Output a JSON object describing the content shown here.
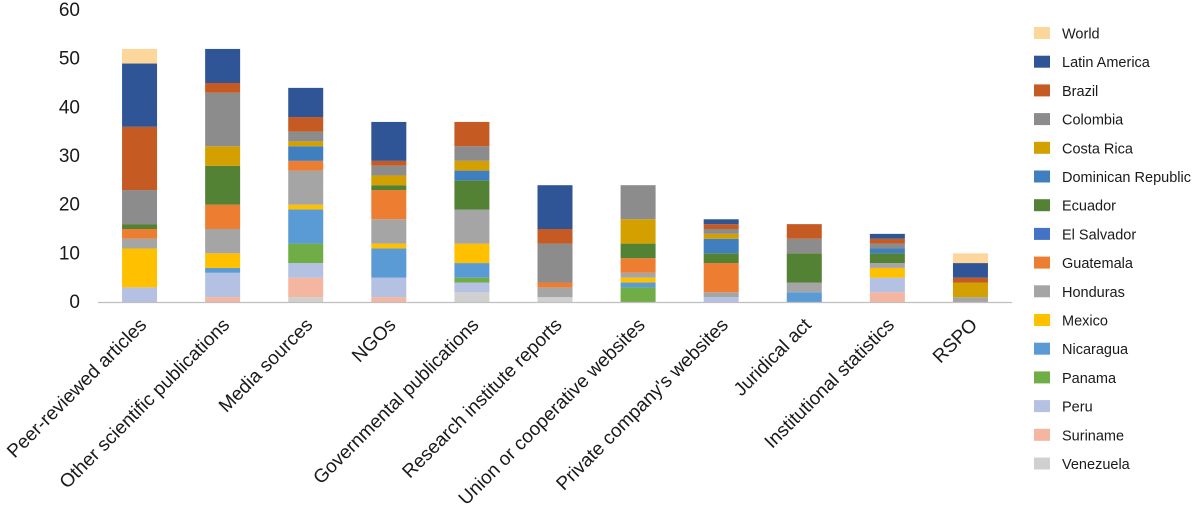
{
  "chart_data": {
    "type": "bar",
    "stacked": true,
    "ylim": [
      0,
      60
    ],
    "yticks": [
      0,
      10,
      20,
      30,
      40,
      50,
      60
    ],
    "grid": false,
    "legend_position": "right",
    "categories": [
      "Peer-reviewed articles",
      "Other scientific publications",
      "Media sources",
      "NGOs",
      "Governmental publications",
      "Research institute reports",
      "Union or cooperative websites",
      "Private company's websites",
      "Juridical act",
      "Institutional statistics",
      "RSPO"
    ],
    "series": [
      {
        "name": "Venezuela",
        "color": "#d0d0d0",
        "values": [
          0,
          0,
          1,
          0,
          2,
          1,
          0,
          0,
          0,
          0,
          0
        ]
      },
      {
        "name": "Suriname",
        "color": "#f4b6a0",
        "values": [
          0,
          1,
          4,
          1,
          0,
          0,
          0,
          0,
          0,
          2,
          0
        ]
      },
      {
        "name": "Peru",
        "color": "#b4c1e3",
        "values": [
          3,
          5,
          3,
          4,
          2,
          0,
          0,
          1,
          0,
          3,
          0
        ]
      },
      {
        "name": "Panama",
        "color": "#70ad47",
        "values": [
          0,
          0,
          4,
          0,
          1,
          0,
          3,
          0,
          0,
          0,
          0
        ]
      },
      {
        "name": "Nicaragua",
        "color": "#5b9bd5",
        "values": [
          0,
          1,
          7,
          6,
          3,
          0,
          1,
          0,
          2,
          0,
          0
        ]
      },
      {
        "name": "Mexico",
        "color": "#ffc000",
        "values": [
          8,
          3,
          1,
          1,
          4,
          0,
          1,
          0,
          0,
          2,
          0
        ]
      },
      {
        "name": "Honduras",
        "color": "#a5a5a5",
        "values": [
          2,
          5,
          7,
          5,
          7,
          2,
          1,
          1,
          2,
          1,
          1
        ]
      },
      {
        "name": "Guatemala",
        "color": "#ed7d31",
        "values": [
          2,
          5,
          2,
          6,
          0,
          1,
          3,
          6,
          0,
          0,
          0
        ]
      },
      {
        "name": "El Salvador",
        "color": "#4472c4",
        "values": [
          0,
          0,
          0,
          0,
          0,
          0,
          0,
          0,
          0,
          0,
          0
        ]
      },
      {
        "name": "Ecuador",
        "color": "#548235",
        "values": [
          1,
          8,
          0,
          1,
          6,
          0,
          3,
          2,
          6,
          2,
          0
        ]
      },
      {
        "name": "Dominican Republic",
        "color": "#3f7fbf",
        "values": [
          0,
          0,
          3,
          0,
          2,
          0,
          0,
          3,
          0,
          1,
          0
        ]
      },
      {
        "name": "Costa Rica",
        "color": "#d4a000",
        "values": [
          0,
          4,
          1,
          2,
          2,
          0,
          5,
          1,
          0,
          0,
          3
        ]
      },
      {
        "name": "Colombia",
        "color": "#8c8c8c",
        "values": [
          7,
          11,
          2,
          2,
          3,
          8,
          7,
          1,
          3,
          1,
          0
        ]
      },
      {
        "name": "Brazil",
        "color": "#c55a22",
        "values": [
          13,
          2,
          3,
          1,
          5,
          3,
          0,
          1,
          3,
          1,
          1
        ]
      },
      {
        "name": "Latin America",
        "color": "#2f5597",
        "values": [
          13,
          7,
          6,
          8,
          0,
          9,
          0,
          1,
          0,
          1,
          3
        ]
      },
      {
        "name": "World",
        "color": "#fcd69a",
        "values": [
          3,
          0,
          0,
          0,
          0,
          0,
          0,
          0,
          0,
          0,
          2
        ]
      }
    ],
    "legend_order": [
      "World",
      "Latin America",
      "Brazil",
      "Colombia",
      "Costa Rica",
      "Dominican Republic",
      "Ecuador",
      "El Salvador",
      "Guatemala",
      "Honduras",
      "Mexico",
      "Nicaragua",
      "Panama",
      "Peru",
      "Suriname",
      "Venezuela"
    ]
  }
}
